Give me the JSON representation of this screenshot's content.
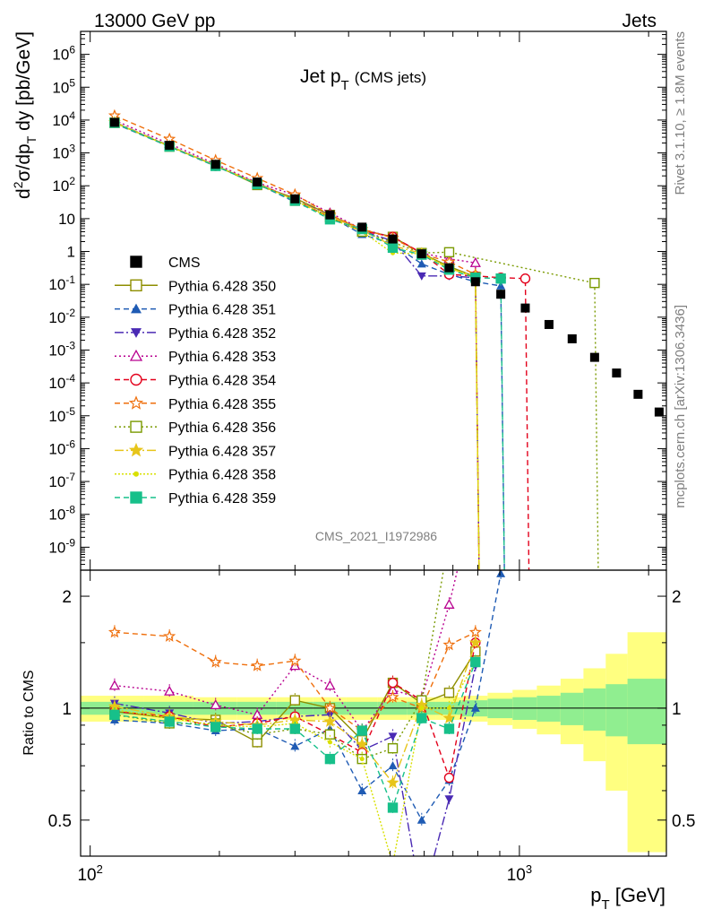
{
  "header": {
    "left": "13000 GeV pp",
    "right": "Jets"
  },
  "plot": {
    "title_main": "Jet p",
    "title_sub": "T",
    "title_tail": "(CMS jets)",
    "analysis_tag": "CMS_2021_I1972986",
    "side_top": "Rivet 3.1.10, ≥ 1.8M events",
    "side_bottom": "mcplots.cern.ch [arXiv:1306.3436]",
    "ylabel_upper": "d²σ/dp_T dy [pb/GeV]",
    "ylabel_lower": "Ratio to CMS",
    "xlabel": "p_T [GeV]"
  },
  "chart_data": [
    {
      "type": "scatter",
      "panel": "main",
      "title": "Jet pT (CMS jets)",
      "xlabel": "pT [GeV]",
      "ylabel": "d2sigma/dpT dy [pb/GeV]",
      "xscale": "log",
      "yscale": "log",
      "xlim": [
        95,
        2200
      ],
      "ylim": [
        2e-10,
        5000000.0
      ],
      "grid": false,
      "legend_position": "left-middle",
      "y_tick_labels": [
        "10^-9",
        "10^-8",
        "10^-7",
        "10^-6",
        "10^-5",
        "10^-4",
        "10^-3",
        "10^-2",
        "10^-1",
        "1",
        "10",
        "10^2",
        "10^3",
        "10^4",
        "10^5",
        "10^6"
      ],
      "x_tick_labels": [
        "10^2",
        "10^3"
      ],
      "data_series": {
        "name": "CMS",
        "color": "#000000",
        "x": [
          114,
          153,
          196,
          245,
          300,
          362,
          430,
          507,
          592,
          686,
          790,
          905,
          1032,
          1172,
          1327,
          1497,
          1684,
          1890,
          2116
        ],
        "y": [
          8500,
          1700,
          450,
          130,
          40,
          13,
          5.5,
          2.4,
          0.85,
          0.32,
          0.12,
          0.05,
          0.019,
          0.006,
          0.0022,
          0.0006,
          0.0002,
          4.5e-05,
          1.3e-05
        ]
      },
      "series": [
        {
          "name": "Pythia 6.428 350",
          "color": "#8e8e00",
          "dash": "",
          "marker": "open-square",
          "x": [
            114,
            153,
            196,
            245,
            300,
            362,
            430,
            507,
            592,
            686,
            790
          ],
          "y": [
            8300,
            1600,
            420,
            105,
            42,
            13,
            4.5,
            2.8,
            0.88,
            0.35,
            0.17
          ]
        },
        {
          "name": "Pythia 6.428 351",
          "color": "#1f5bb4",
          "dash": "6,4",
          "marker": "triangle-up",
          "x": [
            114,
            153,
            196,
            245,
            300,
            362,
            430,
            507,
            592,
            686,
            790,
            905
          ],
          "y": [
            7900,
            1550,
            395,
            115,
            32,
            11.5,
            3.3,
            1.7,
            0.42,
            0.2,
            0.12,
            0.09
          ]
        },
        {
          "name": "Pythia 6.428 352",
          "color": "#4a2ab4",
          "dash": "10,3,2,3",
          "marker": "triangle-down",
          "x": [
            114,
            153,
            196,
            245,
            300,
            362,
            430,
            507,
            592,
            686,
            790
          ],
          "y": [
            8700,
            1650,
            410,
            120,
            38,
            12.5,
            4.2,
            2.1,
            0.18,
            0.18,
            0.16
          ]
        },
        {
          "name": "Pythia 6.428 353",
          "color": "#b8008f",
          "dash": "2,3",
          "marker": "open-triangle",
          "x": [
            114,
            153,
            196,
            245,
            300,
            362,
            430,
            507,
            592,
            686,
            790
          ],
          "y": [
            9800,
            1900,
            460,
            125,
            52,
            15,
            4.8,
            2.7,
            0.9,
            0.6,
            0.45
          ]
        },
        {
          "name": "Pythia 6.428 354",
          "color": "#e3001b",
          "dash": "6,4",
          "marker": "open-circle",
          "x": [
            114,
            153,
            196,
            245,
            300,
            362,
            430,
            507,
            592,
            686,
            790,
            905,
            1032
          ],
          "y": [
            8300,
            1600,
            400,
            118,
            38,
            11,
            4.2,
            2.8,
            0.9,
            0.2,
            0.18,
            0.16,
            0.15
          ]
        },
        {
          "name": "Pythia 6.428 355",
          "color": "#ef6f0c",
          "dash": "6,4",
          "marker": "open-star",
          "x": [
            114,
            153,
            196,
            245,
            300,
            362,
            430,
            507,
            592,
            686,
            790
          ],
          "y": [
            13600,
            2650,
            600,
            170,
            54,
            13,
            4.8,
            2.6,
            0.85,
            0.48,
            0.2
          ]
        },
        {
          "name": "Pythia 6.428 356",
          "color": "#7a9a00",
          "dash": "2,3",
          "marker": "open-square",
          "x": [
            114,
            153,
            196,
            245,
            300,
            362,
            430,
            507,
            592,
            686,
            1497
          ],
          "y": [
            8200,
            1550,
            410,
            110,
            35,
            11,
            4,
            1.9,
            0.9,
            0.95,
            0.11
          ]
        },
        {
          "name": "Pythia 6.428 357",
          "color": "#e7c51a",
          "dash": "10,3,2,3",
          "marker": "star",
          "x": [
            114,
            153,
            196,
            245,
            300,
            362,
            430,
            507,
            592,
            686,
            790
          ],
          "y": [
            8600,
            1620,
            415,
            118,
            37,
            12,
            4.4,
            1.5,
            0.87,
            0.3,
            0.18
          ]
        },
        {
          "name": "Pythia 6.428 358",
          "color": "#d9e000",
          "dash": "2,2",
          "marker": "dot",
          "x": [
            114,
            153,
            196,
            245,
            300,
            362,
            430,
            507,
            592,
            686,
            790
          ],
          "y": [
            8400,
            1600,
            405,
            116,
            36,
            10.5,
            4,
            0.9,
            0.85,
            0.32,
            0.16
          ]
        },
        {
          "name": "Pythia 6.428 359",
          "color": "#17c08a",
          "dash": "6,4",
          "marker": "square",
          "x": [
            114,
            153,
            196,
            245,
            300,
            362,
            430,
            507,
            592,
            686,
            790,
            905
          ],
          "y": [
            8200,
            1560,
            400,
            112,
            35,
            9.5,
            4.8,
            1.3,
            0.8,
            0.28,
            0.16,
            0.15
          ]
        }
      ]
    },
    {
      "type": "line",
      "panel": "ratio",
      "ylabel": "Ratio to CMS",
      "xlabel": "pT [GeV]",
      "xscale": "log",
      "xlim": [
        95,
        2200
      ],
      "ylim": [
        0.4,
        2.35
      ],
      "y_tick_labels": [
        "0.5",
        "1",
        "2"
      ],
      "uncertainty_band_x_edges": [
        95,
        133,
        174,
        220,
        271,
        330,
        395,
        468,
        548,
        637,
        734,
        843,
        964,
        1098,
        1247,
        1410,
        1589,
        1786,
        2200
      ],
      "uncertainty_band_inner": [
        0.04,
        0.04,
        0.04,
        0.04,
        0.04,
        0.04,
        0.04,
        0.04,
        0.04,
        0.04,
        0.05,
        0.06,
        0.07,
        0.08,
        0.1,
        0.13,
        0.16,
        0.2
      ],
      "uncertainty_band_outer": [
        0.08,
        0.08,
        0.07,
        0.07,
        0.07,
        0.07,
        0.07,
        0.07,
        0.07,
        0.07,
        0.08,
        0.1,
        0.12,
        0.15,
        0.2,
        0.28,
        0.4,
        0.6
      ],
      "series": [
        {
          "name": "Pythia 6.428 350",
          "x": [
            114,
            153,
            196,
            245,
            300,
            362,
            430,
            507,
            592,
            686,
            790
          ],
          "y": [
            0.98,
            0.94,
            0.93,
            0.81,
            1.05,
            1.0,
            0.82,
            1.17,
            1.03,
            1.1,
            1.42
          ]
        },
        {
          "name": "Pythia 6.428 351",
          "x": [
            114,
            153,
            196,
            245,
            300,
            362,
            430,
            507,
            592,
            686,
            790,
            905
          ],
          "y": [
            0.93,
            0.91,
            0.87,
            0.88,
            0.79,
            0.88,
            0.6,
            0.7,
            0.5,
            0.64,
            1.0,
            2.3
          ]
        },
        {
          "name": "Pythia 6.428 352",
          "x": [
            114,
            153,
            196,
            245,
            300,
            362,
            430,
            507,
            592,
            686,
            790
          ],
          "y": [
            1.03,
            0.97,
            0.91,
            0.92,
            0.95,
            0.96,
            0.77,
            0.84,
            0.21,
            0.57,
            1.3
          ]
        },
        {
          "name": "Pythia 6.428 353",
          "x": [
            114,
            153,
            196,
            245,
            300,
            362,
            430,
            507,
            592,
            686,
            790
          ],
          "y": [
            1.15,
            1.11,
            1.02,
            0.96,
            1.3,
            1.15,
            0.87,
            1.12,
            1.06,
            1.9,
            3.75
          ]
        },
        {
          "name": "Pythia 6.428 354",
          "x": [
            114,
            153,
            196,
            245,
            300,
            362,
            430,
            507,
            592,
            686,
            790
          ],
          "y": [
            0.98,
            0.95,
            0.89,
            0.91,
            0.95,
            0.85,
            0.76,
            1.17,
            1.05,
            0.65,
            1.5
          ]
        },
        {
          "name": "Pythia 6.428 355",
          "x": [
            114,
            153,
            196,
            245,
            300,
            362,
            430,
            507,
            592,
            686,
            790
          ],
          "y": [
            1.6,
            1.56,
            1.33,
            1.3,
            1.34,
            1.0,
            0.87,
            1.07,
            1.0,
            1.48,
            1.6
          ]
        },
        {
          "name": "Pythia 6.428 356",
          "x": [
            114,
            153,
            196,
            245,
            300,
            362,
            430,
            507,
            592,
            686
          ],
          "y": [
            0.96,
            0.91,
            0.91,
            0.85,
            0.88,
            0.85,
            0.73,
            0.78,
            1.05,
            2.9
          ]
        },
        {
          "name": "Pythia 6.428 357",
          "x": [
            114,
            153,
            196,
            245,
            300,
            362,
            430,
            507,
            592,
            686,
            790
          ],
          "y": [
            1.01,
            0.95,
            0.92,
            0.9,
            0.93,
            0.92,
            0.8,
            0.63,
            1.02,
            0.94,
            1.5
          ]
        },
        {
          "name": "Pythia 6.428 358",
          "x": [
            114,
            153,
            196,
            245,
            300,
            362,
            430,
            507,
            592,
            686,
            790
          ],
          "y": [
            0.99,
            0.94,
            0.9,
            0.89,
            0.91,
            0.81,
            0.73,
            0.38,
            1.0,
            1.0,
            1.33
          ]
        },
        {
          "name": "Pythia 6.428 359",
          "x": [
            114,
            153,
            196,
            245,
            300,
            362,
            430,
            507,
            592,
            686,
            790
          ],
          "y": [
            0.96,
            0.92,
            0.89,
            0.88,
            0.88,
            0.73,
            0.87,
            0.54,
            0.94,
            0.88,
            1.33
          ]
        }
      ]
    }
  ]
}
